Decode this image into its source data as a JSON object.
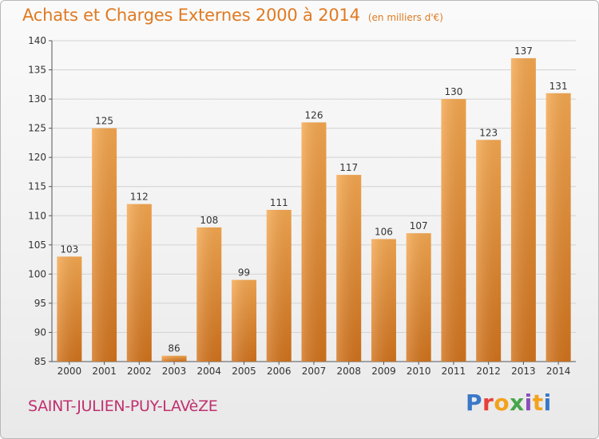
{
  "header": {
    "title": "Achats et Charges Externes 2000 à 2014",
    "unit": "(en milliers d'€)"
  },
  "footer": {
    "commune": "SAINT-JULIEN-PUY-LAVèZE",
    "logo_text": "Proxiti",
    "logo_colors": [
      "#3a78c8",
      "#e8403a",
      "#f2a21c",
      "#46a64a",
      "#8c4fb8",
      "#f2a21c",
      "#3a78c8"
    ]
  },
  "colors": {
    "bar_light": "#f5a850",
    "bar_dark": "#d2731c",
    "title": "#e07a22",
    "commune": "#c0306e",
    "grid": "#d2d2d2"
  },
  "chart_data": {
    "type": "bar",
    "title": "Achats et Charges Externes 2000 à 2014",
    "subtitle": "(en milliers d'€)",
    "xlabel": "",
    "ylabel": "",
    "categories": [
      "2000",
      "2001",
      "2002",
      "2003",
      "2004",
      "2005",
      "2006",
      "2007",
      "2008",
      "2009",
      "2010",
      "2011",
      "2012",
      "2013",
      "2014"
    ],
    "values": [
      103,
      125,
      112,
      86,
      108,
      99,
      111,
      126,
      117,
      106,
      107,
      130,
      123,
      137,
      131
    ],
    "ylim": [
      85,
      140
    ],
    "yticks": [
      85,
      90,
      95,
      100,
      105,
      110,
      115,
      120,
      125,
      130,
      135,
      140
    ],
    "grid": true,
    "data_labels": true
  }
}
